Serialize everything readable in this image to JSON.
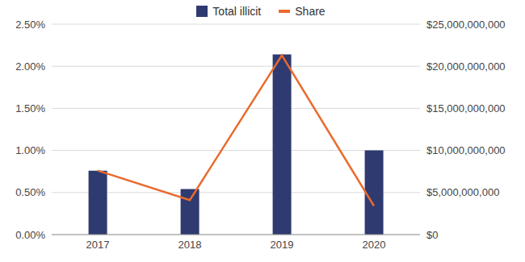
{
  "chart_data": {
    "type": "combo",
    "categories": [
      "2017",
      "2018",
      "2019",
      "2020"
    ],
    "series": [
      {
        "name": "Total illicit",
        "type": "bar",
        "color": "#2e3a70",
        "axis": "y2",
        "values": [
          7600000000,
          5400000000,
          21400000000,
          10000000000
        ]
      },
      {
        "name": "Share",
        "type": "line",
        "color": "#ea6a2e",
        "values": [
          0.76,
          0.41,
          2.13,
          0.34
        ]
      }
    ],
    "ylim": [
      0,
      2.5
    ],
    "yticks": [
      {
        "value": 0,
        "label": "0.00%"
      },
      {
        "value": 0.5,
        "label": "0.50%"
      },
      {
        "value": 1,
        "label": "1.00%"
      },
      {
        "value": 1.5,
        "label": "1.50%"
      },
      {
        "value": 2,
        "label": "2.00%"
      },
      {
        "value": 2.5,
        "label": "2.50%"
      }
    ],
    "y2lim": [
      0,
      25000000000
    ],
    "y2ticks": [
      {
        "value": 0,
        "label": "$0"
      },
      {
        "value": 5000000000,
        "label": "$5,000,000,000"
      },
      {
        "value": 10000000000,
        "label": "$10,000,000,000"
      },
      {
        "value": 15000000000,
        "label": "$15,000,000,000"
      },
      {
        "value": 20000000000,
        "label": "$20,000,000,000"
      },
      {
        "value": 25000000000,
        "label": "$25,000,000,000"
      }
    ],
    "grid": true,
    "legend": "top"
  }
}
